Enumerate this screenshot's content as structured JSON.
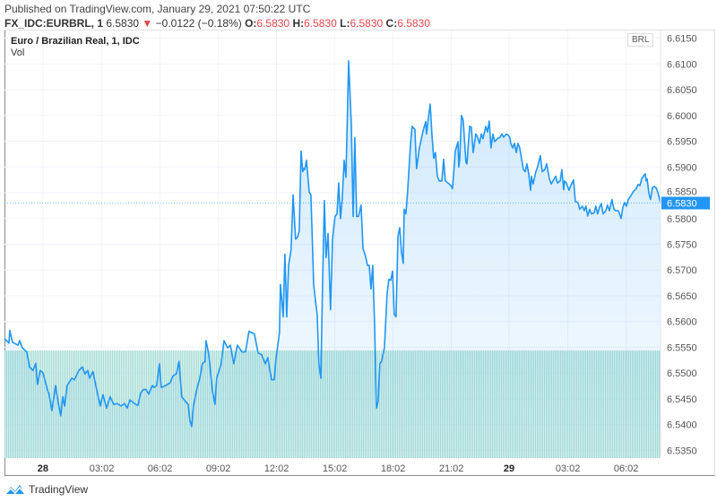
{
  "header": {
    "published": "Published on TradingView.com, January 29, 2021 07:50:22 UTC",
    "symbol": "FX_IDC:EURBRL, 1",
    "last": "6.5830",
    "change": "−0.0122 (−0.18%)",
    "o_label": "O:",
    "o": "6.5830",
    "h_label": "H:",
    "h": "6.5830",
    "l_label": "L:",
    "l": "6.5830",
    "c_label": "C:",
    "c": "6.5830"
  },
  "legend": {
    "title": "Euro / Brazilian Real, 1, IDC",
    "vol": "Vol"
  },
  "currency": "BRL",
  "brand": "TradingView",
  "colors": {
    "line": "#2196f3",
    "volume": "#a7ddd6",
    "down": "#e8474a",
    "grid": "#f0f3fa"
  },
  "chart_data": {
    "type": "area",
    "title": "Euro / Brazilian Real, 1, IDC",
    "xlabel": "",
    "ylabel": "BRL",
    "x_unit": "hours since Jan 28 00:00 UTC",
    "xlim": [
      -1.98,
      31.8
    ],
    "ylim": [
      6.5335,
      6.6165
    ],
    "y_ticks": [
      "6.6150",
      "6.6100",
      "6.6050",
      "6.6000",
      "6.5950",
      "6.5900",
      "6.5850",
      "6.5800",
      "6.5750",
      "6.5700",
      "6.5650",
      "6.5600",
      "6.5550",
      "6.5500",
      "6.5450",
      "6.5400",
      "6.5350"
    ],
    "x_ticks": [
      {
        "label": "28",
        "h": 0,
        "bold": true
      },
      {
        "label": "03:02",
        "h": 3.03
      },
      {
        "label": "06:02",
        "h": 6.03
      },
      {
        "label": "09:02",
        "h": 9.03
      },
      {
        "label": "12:02",
        "h": 12.03
      },
      {
        "label": "15:02",
        "h": 15.03
      },
      {
        "label": "18:02",
        "h": 18.03
      },
      {
        "label": "21:02",
        "h": 21.03
      },
      {
        "label": "29",
        "h": 24,
        "bold": true
      },
      {
        "label": "03:02",
        "h": 27.03
      },
      {
        "label": "06:02",
        "h": 30.03
      }
    ],
    "current_price": "6.5830",
    "grid": true,
    "volume": {
      "name": "Vol",
      "bars": 366,
      "relative_value": 1
    },
    "series": [
      {
        "name": "EURBRL",
        "points": [
          [
            -1.98,
            6.5567
          ],
          [
            -1.75,
            6.5558
          ],
          [
            -1.71,
            6.5583
          ],
          [
            -1.57,
            6.556
          ],
          [
            -1.29,
            6.5554
          ],
          [
            -1.2,
            6.5563
          ],
          [
            -1.06,
            6.5549
          ],
          [
            -0.83,
            6.5541
          ],
          [
            -0.69,
            6.5512
          ],
          [
            -0.51,
            6.5505
          ],
          [
            -0.37,
            6.5519
          ],
          [
            -0.28,
            6.5478
          ],
          [
            -0.14,
            6.5505
          ],
          [
            0,
            6.5501
          ],
          [
            0.23,
            6.5468
          ],
          [
            0.32,
            6.5459
          ],
          [
            0.46,
            6.5427
          ],
          [
            0.65,
            6.5476
          ],
          [
            0.78,
            6.5445
          ],
          [
            0.92,
            6.5417
          ],
          [
            1.02,
            6.5454
          ],
          [
            1.11,
            6.5436
          ],
          [
            1.25,
            6.5476
          ],
          [
            1.48,
            6.549
          ],
          [
            1.62,
            6.5487
          ],
          [
            1.85,
            6.5505
          ],
          [
            2.03,
            6.5512
          ],
          [
            2.17,
            6.5498
          ],
          [
            2.31,
            6.5505
          ],
          [
            2.4,
            6.549
          ],
          [
            2.58,
            6.5503
          ],
          [
            2.77,
            6.5468
          ],
          [
            2.95,
            6.5436
          ],
          [
            3.09,
            6.5458
          ],
          [
            3.28,
            6.5432
          ],
          [
            3.46,
            6.5454
          ],
          [
            3.65,
            6.5439
          ],
          [
            3.83,
            6.5441
          ],
          [
            4.02,
            6.5436
          ],
          [
            4.2,
            6.5441
          ],
          [
            4.34,
            6.5432
          ],
          [
            4.48,
            6.5448
          ],
          [
            4.71,
            6.5441
          ],
          [
            4.89,
            6.5437
          ],
          [
            5.03,
            6.5461
          ],
          [
            5.17,
            6.5468
          ],
          [
            5.31,
            6.5468
          ],
          [
            5.45,
            6.5459
          ],
          [
            5.63,
            6.5476
          ],
          [
            5.72,
            6.5472
          ],
          [
            5.86,
            6.5476
          ],
          [
            6.0,
            6.5518
          ],
          [
            6.09,
            6.5472
          ],
          [
            6.32,
            6.5476
          ],
          [
            6.55,
            6.5481
          ],
          [
            6.69,
            6.5494
          ],
          [
            6.88,
            6.5499
          ],
          [
            7.01,
            6.5523
          ],
          [
            7.15,
            6.5454
          ],
          [
            7.34,
            6.5445
          ],
          [
            7.48,
            6.5439
          ],
          [
            7.57,
            6.5408
          ],
          [
            7.66,
            6.5396
          ],
          [
            7.75,
            6.5436
          ],
          [
            7.94,
            6.5472
          ],
          [
            8.08,
            6.549
          ],
          [
            8.21,
            6.5518
          ],
          [
            8.35,
            6.5523
          ],
          [
            8.4,
            6.5563
          ],
          [
            8.54,
            6.5536
          ],
          [
            8.72,
            6.5468
          ],
          [
            8.86,
            6.5439
          ],
          [
            8.95,
            6.549
          ],
          [
            9.18,
            6.5518
          ],
          [
            9.32,
            6.5563
          ],
          [
            9.51,
            6.5549
          ],
          [
            9.65,
            6.5554
          ],
          [
            9.83,
            6.5518
          ],
          [
            10.01,
            6.5554
          ],
          [
            10.25,
            6.5541
          ],
          [
            10.43,
            6.5541
          ],
          [
            10.61,
            6.5581
          ],
          [
            10.89,
            6.5576
          ],
          [
            11.08,
            6.5539
          ],
          [
            11.26,
            6.5536
          ],
          [
            11.45,
            6.5518
          ],
          [
            11.58,
            6.553
          ],
          [
            11.77,
            6.5487
          ],
          [
            11.91,
            6.5487
          ],
          [
            12.0,
            6.5527
          ],
          [
            12.18,
            6.5578
          ],
          [
            12.23,
            6.5672
          ],
          [
            12.37,
            6.5609
          ],
          [
            12.46,
            6.5731
          ],
          [
            12.55,
            6.5609
          ],
          [
            12.65,
            6.5709
          ],
          [
            12.78,
            6.574
          ],
          [
            12.88,
            6.5846
          ],
          [
            13.01,
            6.576
          ],
          [
            13.11,
            6.5764
          ],
          [
            13.2,
            6.5776
          ],
          [
            13.29,
            6.5931
          ],
          [
            13.38,
            6.5891
          ],
          [
            13.43,
            6.5897
          ],
          [
            13.48,
            6.5895
          ],
          [
            13.57,
            6.5913
          ],
          [
            13.71,
            6.5851
          ],
          [
            13.8,
            6.5846
          ],
          [
            13.94,
            6.5672
          ],
          [
            14.03,
            6.5642
          ],
          [
            14.12,
            6.5614
          ],
          [
            14.21,
            6.5518
          ],
          [
            14.31,
            6.549
          ],
          [
            14.4,
            6.5672
          ],
          [
            14.49,
            6.5835
          ],
          [
            14.58,
            6.5724
          ],
          [
            14.68,
            6.5771
          ],
          [
            14.81,
            6.5623
          ],
          [
            14.91,
            6.576
          ],
          [
            15.04,
            6.5804
          ],
          [
            15.14,
            6.5809
          ],
          [
            15.23,
            6.5869
          ],
          [
            15.32,
            6.58
          ],
          [
            15.41,
            6.5837
          ],
          [
            15.51,
            6.5913
          ],
          [
            15.6,
            6.588
          ],
          [
            15.74,
            6.6106
          ],
          [
            15.88,
            6.5982
          ],
          [
            15.97,
            6.5804
          ],
          [
            16.06,
            6.5957
          ],
          [
            16.15,
            6.5804
          ],
          [
            16.25,
            6.5804
          ],
          [
            16.38,
            6.5826
          ],
          [
            16.48,
            6.5742
          ],
          [
            16.61,
            6.5727
          ],
          [
            16.71,
            6.5709
          ],
          [
            16.8,
            6.5709
          ],
          [
            16.89,
            6.5663
          ],
          [
            16.98,
            6.5709
          ],
          [
            17.08,
            6.5591
          ],
          [
            17.17,
            6.5432
          ],
          [
            17.26,
            6.5445
          ],
          [
            17.35,
            6.5518
          ],
          [
            17.44,
            6.5523
          ],
          [
            17.58,
            6.5549
          ],
          [
            17.72,
            6.5654
          ],
          [
            17.81,
            6.5682
          ],
          [
            17.91,
            6.568
          ],
          [
            18.0,
            6.5698
          ],
          [
            18.09,
            6.5614
          ],
          [
            18.18,
            6.5609
          ],
          [
            18.28,
            6.5765
          ],
          [
            18.37,
            6.5782
          ],
          [
            18.46,
            6.5736
          ],
          [
            18.55,
            6.5713
          ],
          [
            18.6,
            6.5818
          ],
          [
            18.69,
            6.5809
          ],
          [
            18.78,
            6.5855
          ],
          [
            18.92,
            6.5942
          ],
          [
            19.01,
            6.5979
          ],
          [
            19.15,
            6.5973
          ],
          [
            19.24,
            6.5897
          ],
          [
            19.38,
            6.5937
          ],
          [
            19.57,
            6.597
          ],
          [
            19.71,
            6.5988
          ],
          [
            19.75,
            6.5964
          ],
          [
            19.84,
            6.5993
          ],
          [
            19.94,
            6.6022
          ],
          [
            20.03,
            6.5964
          ],
          [
            20.12,
            6.5917
          ],
          [
            20.21,
            6.5928
          ],
          [
            20.31,
            6.5882
          ],
          [
            20.4,
            6.5873
          ],
          [
            20.54,
            6.5873
          ],
          [
            20.63,
            6.5915
          ],
          [
            20.72,
            6.5873
          ],
          [
            20.86,
            6.5869
          ],
          [
            21.0,
            6.5864
          ],
          [
            21.09,
            6.5858
          ],
          [
            21.23,
            6.5931
          ],
          [
            21.37,
            6.5949
          ],
          [
            21.41,
            6.59
          ],
          [
            21.46,
            6.5915
          ],
          [
            21.55,
            6.6
          ],
          [
            21.64,
            6.5991
          ],
          [
            21.78,
            6.5909
          ],
          [
            21.83,
            6.5906
          ],
          [
            21.97,
            6.5979
          ],
          [
            22.06,
            6.5977
          ],
          [
            22.15,
            6.5928
          ],
          [
            22.29,
            6.5964
          ],
          [
            22.38,
            6.5958
          ],
          [
            22.48,
            6.5946
          ],
          [
            22.57,
            6.5964
          ],
          [
            22.66,
            6.5955
          ],
          [
            22.8,
            6.5979
          ],
          [
            22.89,
            6.5968
          ],
          [
            22.98,
            6.5989
          ],
          [
            23.07,
            6.5937
          ],
          [
            23.17,
            6.5964
          ],
          [
            23.26,
            6.5949
          ],
          [
            23.4,
            6.5955
          ],
          [
            23.54,
            6.5958
          ],
          [
            23.63,
            6.5964
          ],
          [
            23.72,
            6.5958
          ],
          [
            23.86,
            6.5964
          ],
          [
            23.95,
            6.5962
          ],
          [
            24.04,
            6.5958
          ],
          [
            24.09,
            6.5946
          ],
          [
            24.18,
            6.5937
          ],
          [
            24.28,
            6.5946
          ],
          [
            24.37,
            6.5928
          ],
          [
            24.46,
            6.5946
          ],
          [
            24.55,
            6.5937
          ],
          [
            24.74,
            6.5895
          ],
          [
            24.83,
            6.5891
          ],
          [
            24.92,
            6.5906
          ],
          [
            25.01,
            6.5887
          ],
          [
            25.11,
            6.5855
          ],
          [
            25.15,
            6.5882
          ],
          [
            25.24,
            6.5867
          ],
          [
            25.38,
            6.5891
          ],
          [
            25.47,
            6.59
          ],
          [
            25.61,
            6.5922
          ],
          [
            25.71,
            6.5891
          ],
          [
            25.84,
            6.5895
          ],
          [
            25.94,
            6.5906
          ],
          [
            26.07,
            6.5878
          ],
          [
            26.17,
            6.5867
          ],
          [
            26.26,
            6.5873
          ],
          [
            26.4,
            6.5882
          ],
          [
            26.49,
            6.5869
          ],
          [
            26.63,
            6.5873
          ],
          [
            26.72,
            6.5895
          ],
          [
            26.81,
            6.5856
          ],
          [
            26.86,
            6.5873
          ],
          [
            26.95,
            6.5869
          ],
          [
            27.09,
            6.5855
          ],
          [
            27.18,
            6.5864
          ],
          [
            27.32,
            6.5875
          ],
          [
            27.41,
            6.5833
          ],
          [
            27.55,
            6.5831
          ],
          [
            27.64,
            6.5818
          ],
          [
            27.78,
            6.5824
          ],
          [
            27.87,
            6.5815
          ],
          [
            27.96,
            6.5824
          ],
          [
            28.05,
            6.5805
          ],
          [
            28.15,
            6.5818
          ],
          [
            28.24,
            6.5809
          ],
          [
            28.38,
            6.5811
          ],
          [
            28.47,
            6.5824
          ],
          [
            28.56,
            6.5809
          ],
          [
            28.66,
            6.5822
          ],
          [
            28.75,
            6.5829
          ],
          [
            28.84,
            6.5809
          ],
          [
            28.98,
            6.5815
          ],
          [
            29.07,
            6.5826
          ],
          [
            29.17,
            6.5815
          ],
          [
            29.3,
            6.5837
          ],
          [
            29.4,
            6.5818
          ],
          [
            29.49,
            6.5815
          ],
          [
            29.63,
            6.5815
          ],
          [
            29.77,
            6.58
          ],
          [
            29.86,
            6.5822
          ],
          [
            29.95,
            6.5831
          ],
          [
            30.04,
            6.5824
          ],
          [
            30.14,
            6.5837
          ],
          [
            30.27,
            6.5844
          ],
          [
            30.41,
            6.5853
          ],
          [
            30.55,
            6.5858
          ],
          [
            30.64,
            6.5866
          ],
          [
            30.74,
            6.5864
          ],
          [
            30.83,
            6.5877
          ],
          [
            30.92,
            6.5882
          ],
          [
            31.01,
            6.5887
          ],
          [
            31.06,
            6.5873
          ],
          [
            31.11,
            6.5877
          ],
          [
            31.2,
            6.5849
          ],
          [
            31.29,
            6.5837
          ],
          [
            31.38,
            6.586
          ],
          [
            31.47,
            6.5862
          ],
          [
            31.57,
            6.586
          ],
          [
            31.66,
            6.5851
          ],
          [
            31.8,
            6.583
          ]
        ]
      }
    ]
  }
}
